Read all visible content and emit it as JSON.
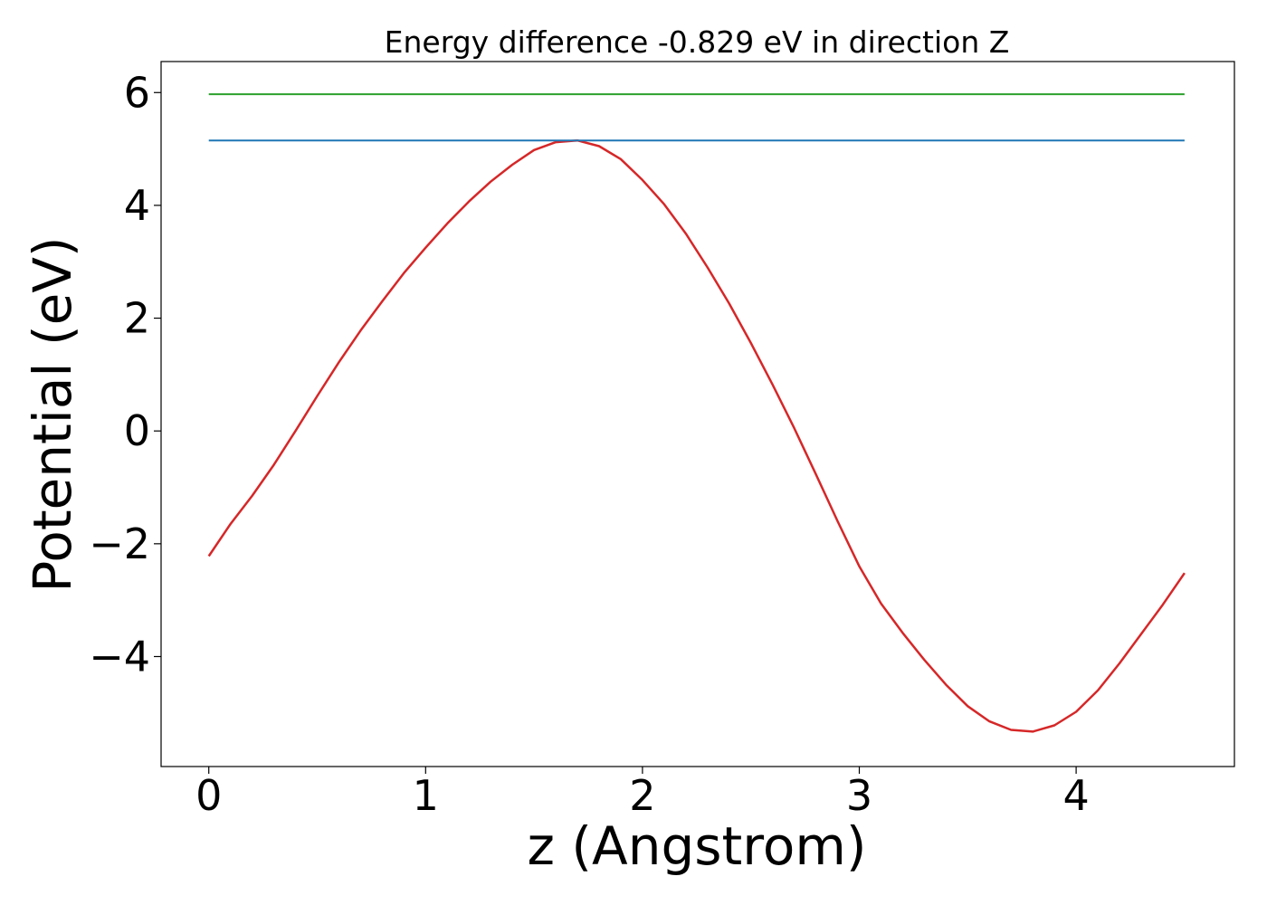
{
  "chart_data": {
    "type": "line",
    "title": "Energy difference -0.829 eV in direction Z",
    "xlabel": "z (Angstrom)",
    "ylabel": "Potential (eV)",
    "xlim": [
      -0.22,
      4.73
    ],
    "ylim": [
      -5.95,
      6.55
    ],
    "xticks": [
      0,
      1,
      2,
      3,
      4
    ],
    "xtick_labels": [
      "0",
      "1",
      "2",
      "3",
      "4"
    ],
    "yticks": [
      -4,
      -2,
      0,
      2,
      4,
      6
    ],
    "ytick_labels": [
      "−4",
      "−2",
      "0",
      "2",
      "4",
      "6"
    ],
    "grid": false,
    "series": [
      {
        "color": "#d62728",
        "x": [
          0,
          0.1,
          0.2,
          0.3,
          0.4,
          0.5,
          0.6,
          0.7,
          0.8,
          0.9,
          1.0,
          1.1,
          1.2,
          1.3,
          1.4,
          1.5,
          1.6,
          1.7,
          1.8,
          1.9,
          2.0,
          2.1,
          2.2,
          2.3,
          2.4,
          2.5,
          2.6,
          2.7,
          2.8,
          2.9,
          3.0,
          3.1,
          3.2,
          3.3,
          3.4,
          3.5,
          3.6,
          3.7,
          3.8,
          3.9,
          4.0,
          4.1,
          4.2,
          4.3,
          4.4,
          4.5
        ],
        "y": [
          -2.22,
          -1.65,
          -1.15,
          -0.6,
          0.0,
          0.62,
          1.22,
          1.78,
          2.3,
          2.8,
          3.25,
          3.68,
          4.07,
          4.42,
          4.72,
          4.98,
          5.12,
          5.15,
          5.05,
          4.82,
          4.45,
          4.02,
          3.5,
          2.9,
          2.26,
          1.56,
          0.82,
          0.05,
          -0.77,
          -1.6,
          -2.4,
          -3.06,
          -3.58,
          -4.06,
          -4.5,
          -4.88,
          -5.15,
          -5.3,
          -5.33,
          -5.22,
          -4.98,
          -4.6,
          -4.12,
          -3.6,
          -3.08,
          -2.52
        ]
      },
      {
        "color": "#1f77b4",
        "x": [
          0,
          4.5
        ],
        "y": [
          5.15,
          5.15
        ]
      },
      {
        "color": "#2ca02c",
        "x": [
          0,
          4.5
        ],
        "y": [
          5.97,
          5.97
        ]
      }
    ]
  }
}
